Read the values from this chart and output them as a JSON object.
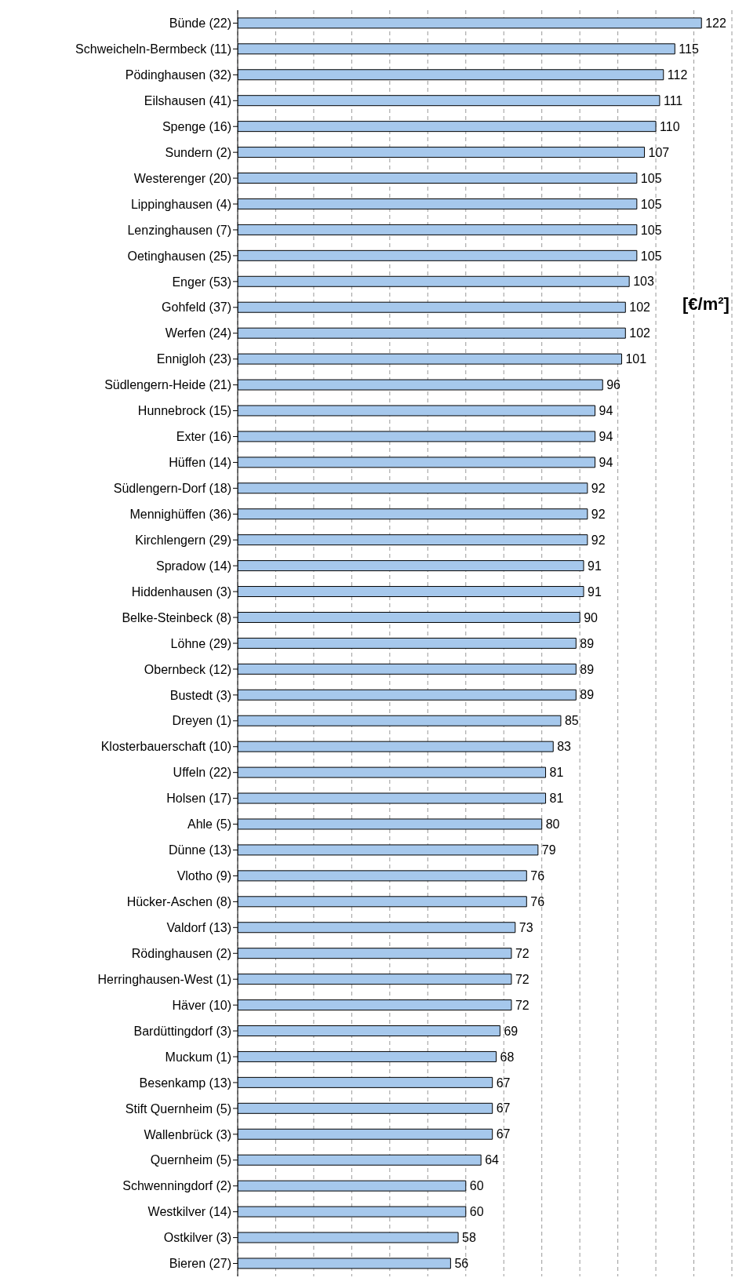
{
  "chart_data": {
    "type": "bar",
    "orientation": "horizontal",
    "xlabel": "[€/m²]",
    "categories": [
      "Bünde (22)",
      "Schweicheln-Bermbeck (11)",
      "Pödinghausen (32)",
      "Eilshausen (41)",
      "Spenge (16)",
      "Sundern (2)",
      "Westerenger (20)",
      "Lippinghausen (4)",
      "Lenzinghausen (7)",
      "Oetinghausen (25)",
      "Enger (53)",
      "Gohfeld (37)",
      "Werfen (24)",
      "Ennigloh (23)",
      "Südlengern-Heide (21)",
      "Hunnebrock (15)",
      "Exter (16)",
      "Hüffen (14)",
      "Südlengern-Dorf (18)",
      "Mennighüffen (36)",
      "Kirchlengern (29)",
      "Spradow  (14)",
      "Hiddenhausen (3)",
      "Belke-Steinbeck (8)",
      "Löhne (29)",
      "Obernbeck (12)",
      "Bustedt (3)",
      "Dreyen (1)",
      "Klosterbauerschaft (10)",
      "Uffeln (22)",
      "Holsen (17)",
      "Ahle (5)",
      "Dünne (13)",
      "Vlotho (9)",
      "Hücker-Aschen (8)",
      "Valdorf (13)",
      "Rödinghausen (2)",
      "Herringhausen-West (1)",
      "Häver (10)",
      "Bardüttingdorf (3)",
      "Muckum (1)",
      "Besenkamp (13)",
      "Stift Quernheim (5)",
      "Wallenbrück (3)",
      "Quernheim (5)",
      "Schwenningdorf (2)",
      "Westkilver (14)",
      "Ostkilver (3)",
      "Bieren (27)"
    ],
    "values": [
      122,
      115,
      112,
      111,
      110,
      107,
      105,
      105,
      105,
      105,
      103,
      102,
      102,
      101,
      96,
      94,
      94,
      94,
      92,
      92,
      92,
      91,
      91,
      90,
      89,
      89,
      89,
      85,
      83,
      81,
      81,
      80,
      79,
      76,
      76,
      73,
      72,
      72,
      72,
      69,
      68,
      67,
      67,
      67,
      64,
      60,
      60,
      58,
      56
    ],
    "color": "#a6c8ec",
    "data_labels": true,
    "xlim": [
      0,
      130
    ],
    "xticks": [
      {
        "value": 0,
        "label": null
      },
      {
        "value": 10,
        "label": null
      },
      {
        "value": 20,
        "label": null
      },
      {
        "value": 30,
        "label": null
      },
      {
        "value": 40,
        "label": null
      },
      {
        "value": 50,
        "label": null
      },
      {
        "value": 60,
        "label": null
      },
      {
        "value": 70,
        "label": null
      },
      {
        "value": 80,
        "label": null
      },
      {
        "value": 90,
        "label": null
      },
      {
        "value": 100,
        "label": null
      },
      {
        "value": 110,
        "label": null
      },
      {
        "value": 120,
        "label": null
      },
      {
        "value": 130,
        "label": null
      }
    ],
    "grid": "x",
    "tick_labels": "y",
    "legend": false
  }
}
